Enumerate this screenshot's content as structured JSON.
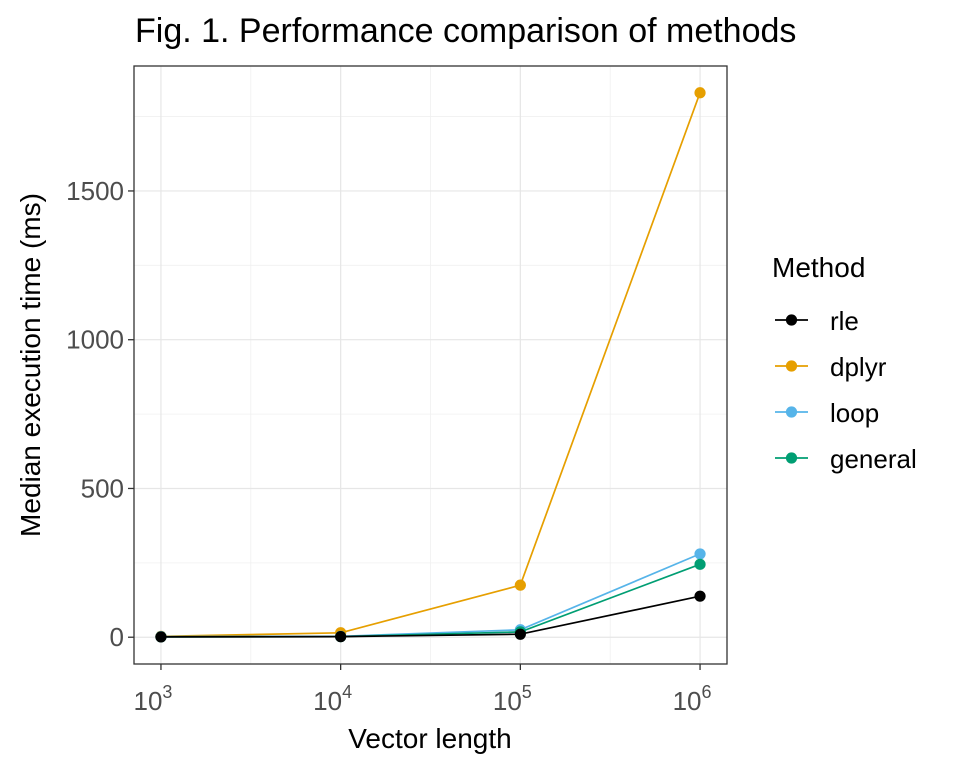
{
  "chart_data": {
    "type": "line",
    "title": "Fig. 1. Performance comparison of methods",
    "xlabel": "Vector length",
    "ylabel": "Median execution time (ms)",
    "x_scale": "log10",
    "x": [
      1000,
      10000,
      100000,
      1000000
    ],
    "x_tick_labels": [
      {
        "base": "10",
        "exp": "3"
      },
      {
        "base": "10",
        "exp": "4"
      },
      {
        "base": "10",
        "exp": "5"
      },
      {
        "base": "10",
        "exp": "6"
      }
    ],
    "y_ticks": [
      0,
      500,
      1000,
      1500
    ],
    "y_tick_labels": [
      "0",
      "500",
      "1000",
      "1500"
    ],
    "ylim": [
      -90,
      1920
    ],
    "grid": true,
    "legend": {
      "title": "Method",
      "position": "right"
    },
    "series": [
      {
        "name": "dplyr",
        "color": "#E69F00",
        "values": [
          3,
          15,
          175,
          1830
        ]
      },
      {
        "name": "loop",
        "color": "#56B4E9",
        "values": [
          2,
          3,
          25,
          280
        ]
      },
      {
        "name": "general",
        "color": "#009E73",
        "values": [
          1,
          2,
          18,
          245
        ]
      },
      {
        "name": "rle",
        "color": "#000000",
        "values": [
          1,
          2,
          10,
          138
        ]
      }
    ],
    "legend_order": [
      "rle",
      "dplyr",
      "loop",
      "general"
    ]
  }
}
